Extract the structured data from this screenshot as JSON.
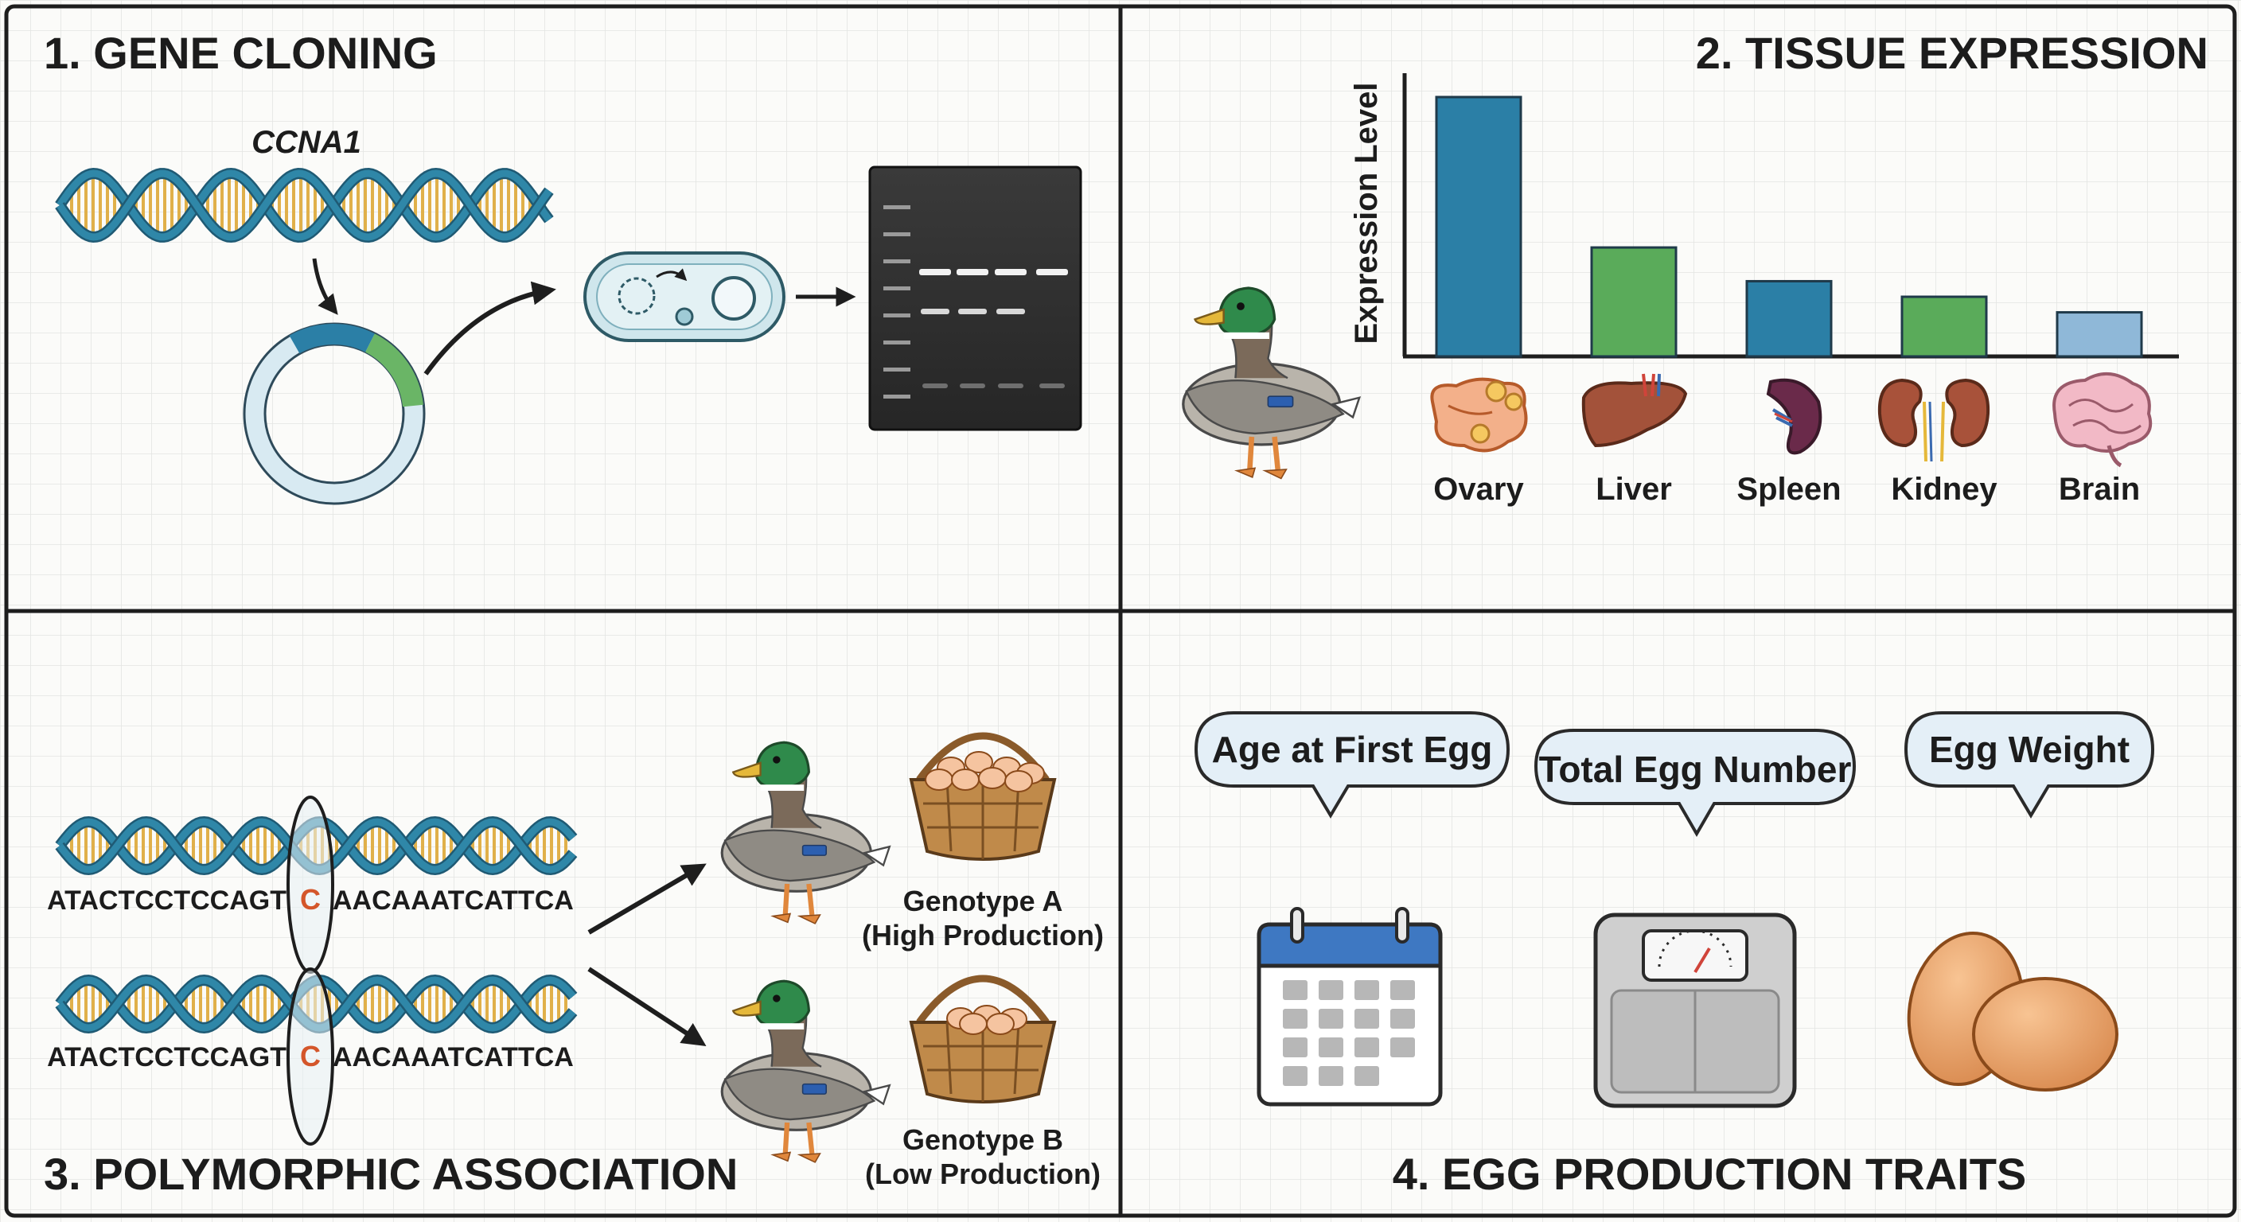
{
  "panels": {
    "p1": {
      "title": "1. GENE CLONING",
      "gene_label": "CCNA1"
    },
    "p2": {
      "title": "2. TISSUE EXPRESSION",
      "chart_data": {
        "type": "bar",
        "ylabel": "Expression Level",
        "categories": [
          "Ovary",
          "Liver",
          "Spleen",
          "Kidney",
          "Brain"
        ],
        "values": [
          1.0,
          0.42,
          0.29,
          0.23,
          0.17
        ],
        "colors": [
          "#2b7fa6",
          "#5aab5a",
          "#2b7fa6",
          "#5aab5a",
          "#8fb8d8"
        ]
      }
    },
    "p3": {
      "title": "3. POLYMORPHIC ASSOCIATION",
      "seq_a_left": "ATACTCCTCCAGT",
      "seq_a_snp": "C",
      "seq_a_right": "AACAAATCATTCA",
      "seq_b_left": "ATACTCCTCCAGT",
      "seq_b_snp": "C",
      "seq_b_right": "AACAAATCATTCA",
      "genotype_a": "Genotype A",
      "genotype_a_note": "(High Production)",
      "genotype_b": "Genotype B",
      "genotype_b_note": "(Low Production)"
    },
    "p4": {
      "title": "4. EGG PRODUCTION TRAITS",
      "trait_1": "Age at First Egg",
      "trait_2": "Total Egg Number",
      "trait_3": "Egg Weight"
    }
  },
  "colors": {
    "snp": "#d4562a",
    "dna_blue": "#2f87a8",
    "dna_rung": "#e0b04a"
  }
}
